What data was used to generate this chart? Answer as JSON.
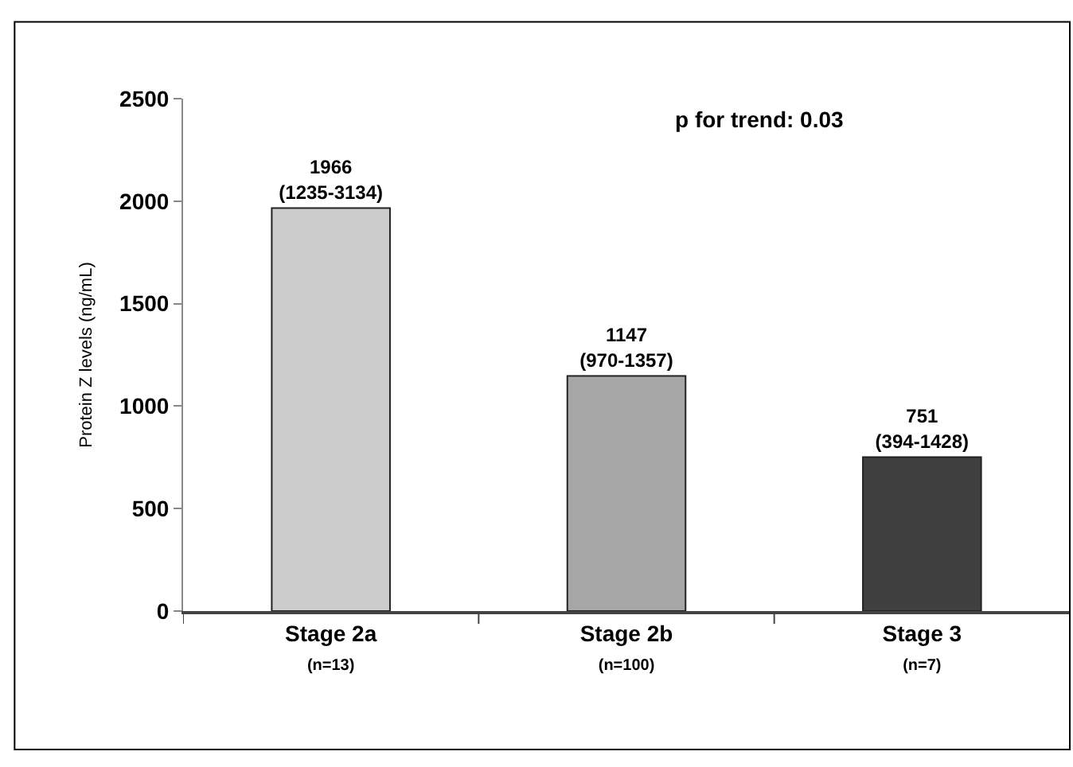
{
  "chart_data": {
    "type": "bar",
    "ylabel": "Protein Z levels (ng/mL)",
    "categories": [
      "Stage 2a\n(n=13)",
      "Stage 2b\n(n=100)",
      "Stage 3\n(n=7)"
    ],
    "values": [
      1966,
      1147,
      751
    ],
    "colors": [
      "#cccccc",
      "#a6a6a6",
      "#404040"
    ],
    "value_labels": [
      "1966\n(1235-3134)",
      "1147\n(970-1357)",
      "751\n(394-1428)"
    ],
    "ylim": [
      0,
      2500
    ],
    "yticks": [
      0,
      500,
      1000,
      1500,
      2000,
      2500
    ],
    "grid": false,
    "annotations": [
      "p for trend: 0.03"
    ]
  }
}
